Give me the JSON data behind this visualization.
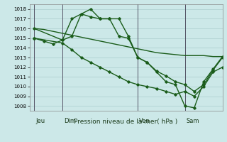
{
  "title": "Pression niveau de la mer( hPa )",
  "bg_color": "#cce8e8",
  "grid_color": "#aacece",
  "line_color": "#1a5c1a",
  "ylim": [
    1007.5,
    1018.5
  ],
  "yticks": [
    1008,
    1009,
    1010,
    1011,
    1012,
    1013,
    1014,
    1015,
    1016,
    1017,
    1018
  ],
  "day_positions": [
    0,
    3,
    11,
    16
  ],
  "day_labels": [
    "Jeu",
    "Dim",
    "Ven",
    "Sam"
  ],
  "xlim": [
    -0.5,
    20
  ],
  "vline_color": "#555566",
  "lines": [
    {
      "x": [
        0,
        1,
        2,
        3,
        4,
        5,
        6,
        7,
        8,
        9,
        10,
        11,
        12,
        13,
        14,
        15,
        16,
        17,
        18,
        19,
        20
      ],
      "y": [
        1016.0,
        1015.9,
        1015.7,
        1015.5,
        1015.3,
        1015.1,
        1014.9,
        1014.7,
        1014.5,
        1014.3,
        1014.1,
        1013.9,
        1013.7,
        1013.5,
        1013.4,
        1013.3,
        1013.2,
        1013.2,
        1013.2,
        1013.1,
        1013.1
      ],
      "marker": false,
      "lw": 1.0
    },
    {
      "x": [
        0,
        1,
        2,
        3,
        4,
        5,
        6,
        7,
        8,
        9,
        10,
        11,
        12,
        13,
        14,
        15,
        16,
        17,
        18,
        19,
        20
      ],
      "y": [
        1015.0,
        1014.7,
        1014.4,
        1014.8,
        1017.0,
        1017.5,
        1017.2,
        1017.0,
        1017.0,
        1015.2,
        1015.0,
        1013.0,
        1012.5,
        1011.6,
        1011.1,
        1010.5,
        1010.2,
        1009.5,
        1010.2,
        1011.7,
        1013.0
      ],
      "marker": true,
      "lw": 1.0
    },
    {
      "x": [
        0,
        3,
        4,
        5,
        6,
        7,
        8,
        9,
        10,
        11,
        12,
        13,
        14,
        15,
        16,
        17,
        18,
        19,
        20
      ],
      "y": [
        1016.0,
        1014.8,
        1015.2,
        1017.5,
        1018.0,
        1017.0,
        1017.0,
        1017.0,
        1015.2,
        1013.0,
        1012.5,
        1011.5,
        1010.5,
        1010.2,
        1008.0,
        1007.8,
        1010.5,
        1011.8,
        1013.1
      ],
      "marker": true,
      "lw": 1.0
    },
    {
      "x": [
        0,
        3,
        4,
        5,
        6,
        7,
        8,
        9,
        10,
        11,
        12,
        13,
        14,
        15,
        16,
        17,
        18,
        19,
        20
      ],
      "y": [
        1015.0,
        1014.5,
        1013.8,
        1013.0,
        1012.5,
        1012.0,
        1011.5,
        1011.0,
        1010.5,
        1010.2,
        1010.0,
        1009.8,
        1009.5,
        1009.2,
        1009.5,
        1009.0,
        1010.0,
        1011.5,
        1012.0
      ],
      "marker": true,
      "lw": 1.0
    }
  ]
}
